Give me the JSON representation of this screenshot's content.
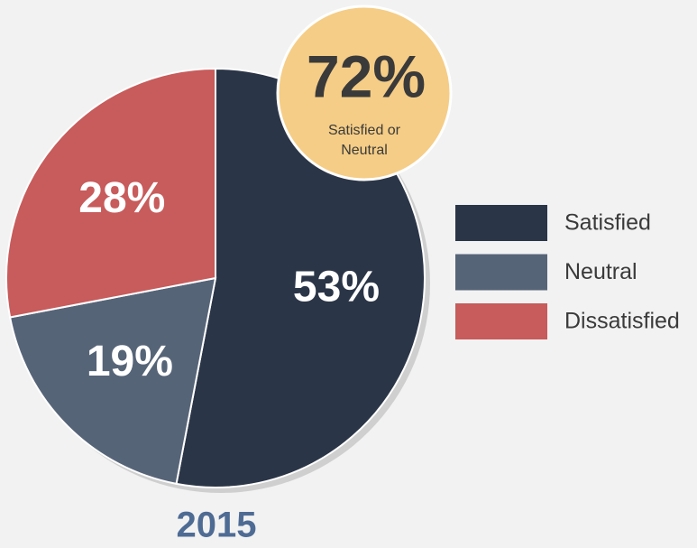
{
  "chart_data": {
    "type": "pie",
    "title": "2015",
    "categories": [
      "Satisfied",
      "Neutral",
      "Dissatisfied"
    ],
    "values": [
      53,
      19,
      28
    ],
    "value_labels": [
      "53%",
      "19%",
      "28%"
    ],
    "colors": [
      "#2a3547",
      "#566478",
      "#c85b5b"
    ],
    "legend": "right",
    "annotation": {
      "value": 72,
      "label": "72%",
      "text": "Satisfied or Neutral"
    }
  }
}
